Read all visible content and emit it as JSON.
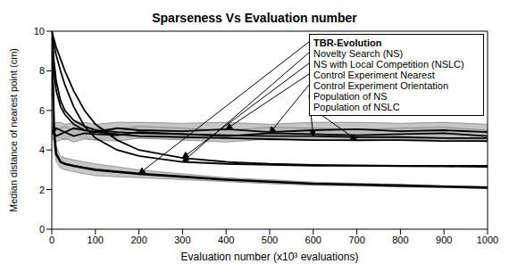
{
  "chart_data": {
    "type": "line",
    "title": "Sparseness Vs Evaluation number",
    "x_label": "Evaluation number (x10³ evaluations)",
    "y_label": "Median distance of nearest point (cm)",
    "xlim": [
      0,
      1000
    ],
    "ylim": [
      0,
      10
    ],
    "xticks": [
      0,
      100,
      200,
      300,
      400,
      500,
      600,
      700,
      800,
      900,
      1000
    ],
    "yticks": [
      0,
      2,
      4,
      6,
      8,
      10
    ],
    "legend": "top right",
    "x": [
      0,
      5,
      10,
      20,
      30,
      50,
      75,
      100,
      150,
      200,
      300,
      400,
      500,
      600,
      700,
      800,
      900,
      1000
    ],
    "series": [
      {
        "name": "TBR-Evolution",
        "color": "#000000",
        "line_style": "solid",
        "values": [
          10,
          5,
          3.8,
          3.4,
          3.3,
          3.2,
          3.1,
          3.0,
          2.9,
          2.8,
          2.65,
          2.5,
          2.4,
          2.3,
          2.25,
          2.2,
          2.15,
          2.1
        ],
        "lower": [
          10,
          4.2,
          3.4,
          3.1,
          3.0,
          2.9,
          2.8,
          2.7,
          2.65,
          2.6,
          2.5,
          2.4,
          2.3,
          2.22,
          2.18,
          2.13,
          2.1,
          2.05
        ],
        "upper": [
          10,
          5.8,
          4.2,
          3.7,
          3.6,
          3.5,
          3.4,
          3.3,
          3.15,
          3.0,
          2.8,
          2.6,
          2.5,
          2.38,
          2.32,
          2.27,
          2.2,
          2.15
        ]
      },
      {
        "name": "Novelty Search (NS)",
        "color": "#000000",
        "line_style": "solid",
        "values": [
          10,
          9.3,
          8.8,
          8.0,
          7.3,
          6.2,
          5.2,
          4.6,
          4.0,
          3.7,
          3.4,
          3.3,
          3.25,
          3.2,
          3.2,
          3.18,
          3.17,
          3.15
        ]
      },
      {
        "name": "NS with Local Competition (NSLC)",
        "color": "#000000",
        "line_style": "solid",
        "values": [
          10,
          9.6,
          9.2,
          8.6,
          8.0,
          7.0,
          6.0,
          5.3,
          4.5,
          4.0,
          3.6,
          3.4,
          3.3,
          3.25,
          3.22,
          3.2,
          3.2,
          3.2
        ]
      },
      {
        "name": "Control Experiment Nearest",
        "color": "#000000",
        "line_style": "solid",
        "values": [
          5.0,
          4.9,
          5.1,
          5.0,
          4.9,
          5.1,
          5.0,
          4.9,
          5.1,
          5.0,
          4.95,
          5.05,
          4.9,
          5.0,
          5.05,
          4.95,
          5.0,
          4.9
        ],
        "lower": [
          4.6,
          4.5,
          4.7,
          4.6,
          4.5,
          4.7,
          4.6,
          4.5,
          4.7,
          4.6,
          4.55,
          4.65,
          4.5,
          4.6,
          4.65,
          4.55,
          4.6,
          4.5
        ],
        "upper": [
          5.4,
          5.3,
          5.4,
          5.4,
          5.3,
          5.4,
          5.4,
          5.3,
          5.4,
          5.4,
          5.35,
          5.4,
          5.3,
          5.4,
          5.4,
          5.35,
          5.4,
          5.3
        ]
      },
      {
        "name": "Control Experiment Orientation",
        "color": "#000000",
        "line_style": "solid",
        "values": [
          4.8,
          4.9,
          4.7,
          4.8,
          4.9,
          4.7,
          4.85,
          4.8,
          4.75,
          4.9,
          4.8,
          4.7,
          4.85,
          4.8,
          4.75,
          4.8,
          4.85,
          4.7
        ],
        "lower": [
          4.5,
          4.6,
          4.4,
          4.5,
          4.6,
          4.4,
          4.55,
          4.5,
          4.45,
          4.6,
          4.5,
          4.4,
          4.55,
          4.5,
          4.45,
          4.5,
          4.55,
          4.4
        ],
        "upper": [
          5.1,
          5.2,
          5.0,
          5.1,
          5.2,
          5.0,
          5.15,
          5.1,
          5.05,
          5.2,
          5.1,
          5.0,
          5.15,
          5.1,
          5.05,
          5.1,
          5.15,
          5.0
        ]
      },
      {
        "name": "Population of NS",
        "color": "#000000",
        "line_style": "solid",
        "values": [
          10,
          8.5,
          7.5,
          6.5,
          6.0,
          5.5,
          5.2,
          5.0,
          4.9,
          4.85,
          4.8,
          4.75,
          4.7,
          4.7,
          4.65,
          4.65,
          4.6,
          4.6
        ]
      },
      {
        "name": "Population of NSLC",
        "color": "#000000",
        "line_style": "solid",
        "values": [
          10,
          8.0,
          7.0,
          6.2,
          5.8,
          5.3,
          5.0,
          4.9,
          4.8,
          4.7,
          4.65,
          4.6,
          4.55,
          4.5,
          4.5,
          4.5,
          4.45,
          4.45
        ]
      }
    ]
  }
}
